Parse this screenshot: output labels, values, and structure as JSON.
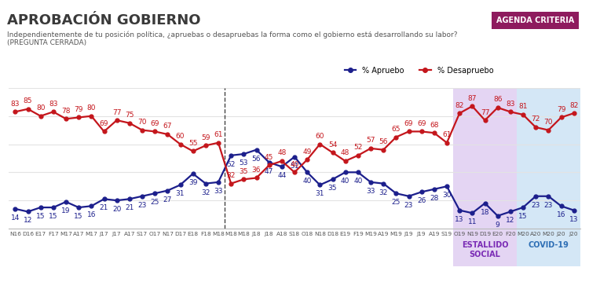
{
  "chart_data": {
    "type": "line",
    "title": "APROBACIÓN GOBIERNO",
    "subtitle": "Independientemente de tu posición política, ¿apruebas o desapruebas la forma como el gobierno está desarrollando su labor?\n(PREGUNTA CERRADA)",
    "badge": "AGENDA CRITERIA",
    "categories": [
      "N16",
      "D16",
      "E17",
      "F17",
      "M17",
      "A17",
      "M17",
      "J17",
      "J17",
      "A17",
      "S17",
      "O17",
      "N17",
      "D17",
      "E18",
      "F18",
      "M18",
      "M18",
      "M18",
      "J18",
      "J18",
      "A18",
      "S18",
      "O18",
      "N18",
      "D18",
      "E19",
      "F19",
      "M19",
      "A19",
      "M19",
      "J19",
      "J19",
      "A19",
      "S19",
      "O19",
      "N19",
      "D19",
      "E20",
      "F20",
      "M20",
      "A20",
      "M20",
      "J20",
      "J20"
    ],
    "series": [
      {
        "name": "% Apruebo",
        "color": "#1c1f8c",
        "marker": "o",
        "values": [
          14,
          12,
          15,
          15,
          19,
          15,
          16,
          21,
          20,
          21,
          23,
          25,
          27,
          31,
          39,
          32,
          33,
          52,
          53,
          56,
          47,
          44,
          51,
          40,
          31,
          35,
          40,
          40,
          33,
          32,
          25,
          23,
          26,
          28,
          30,
          13,
          11,
          18,
          9,
          12,
          15,
          23,
          23,
          16,
          13
        ]
      },
      {
        "name": "% Desapruebo",
        "color": "#c4161c",
        "marker": "o",
        "values": [
          83,
          85,
          80,
          83,
          78,
          79,
          80,
          69,
          77,
          75,
          70,
          69,
          67,
          60,
          55,
          59,
          61,
          32,
          35,
          36,
          45,
          48,
          40,
          49,
          60,
          54,
          48,
          52,
          57,
          56,
          65,
          69,
          69,
          68,
          61,
          82,
          87,
          77,
          86,
          83,
          81,
          72,
          70,
          79,
          82
        ]
      }
    ],
    "ylim": [
      0,
      100
    ],
    "yticks": [
      0,
      20,
      40,
      60,
      80,
      100
    ],
    "grid": true,
    "legend": "upper right",
    "data_labels": true,
    "tick_labels": "x",
    "divider_before": 17,
    "shaded_regions": [
      {
        "label": "ESTALLIDO\nSOCIAL",
        "from": 35,
        "to": 39,
        "color": "#e4d5f3",
        "label_color": "#7a2bb5"
      },
      {
        "label": "COVID-19",
        "from": 40,
        "to": 44,
        "color": "#d4e7f6",
        "label_color": "#2f6fb5"
      }
    ]
  }
}
